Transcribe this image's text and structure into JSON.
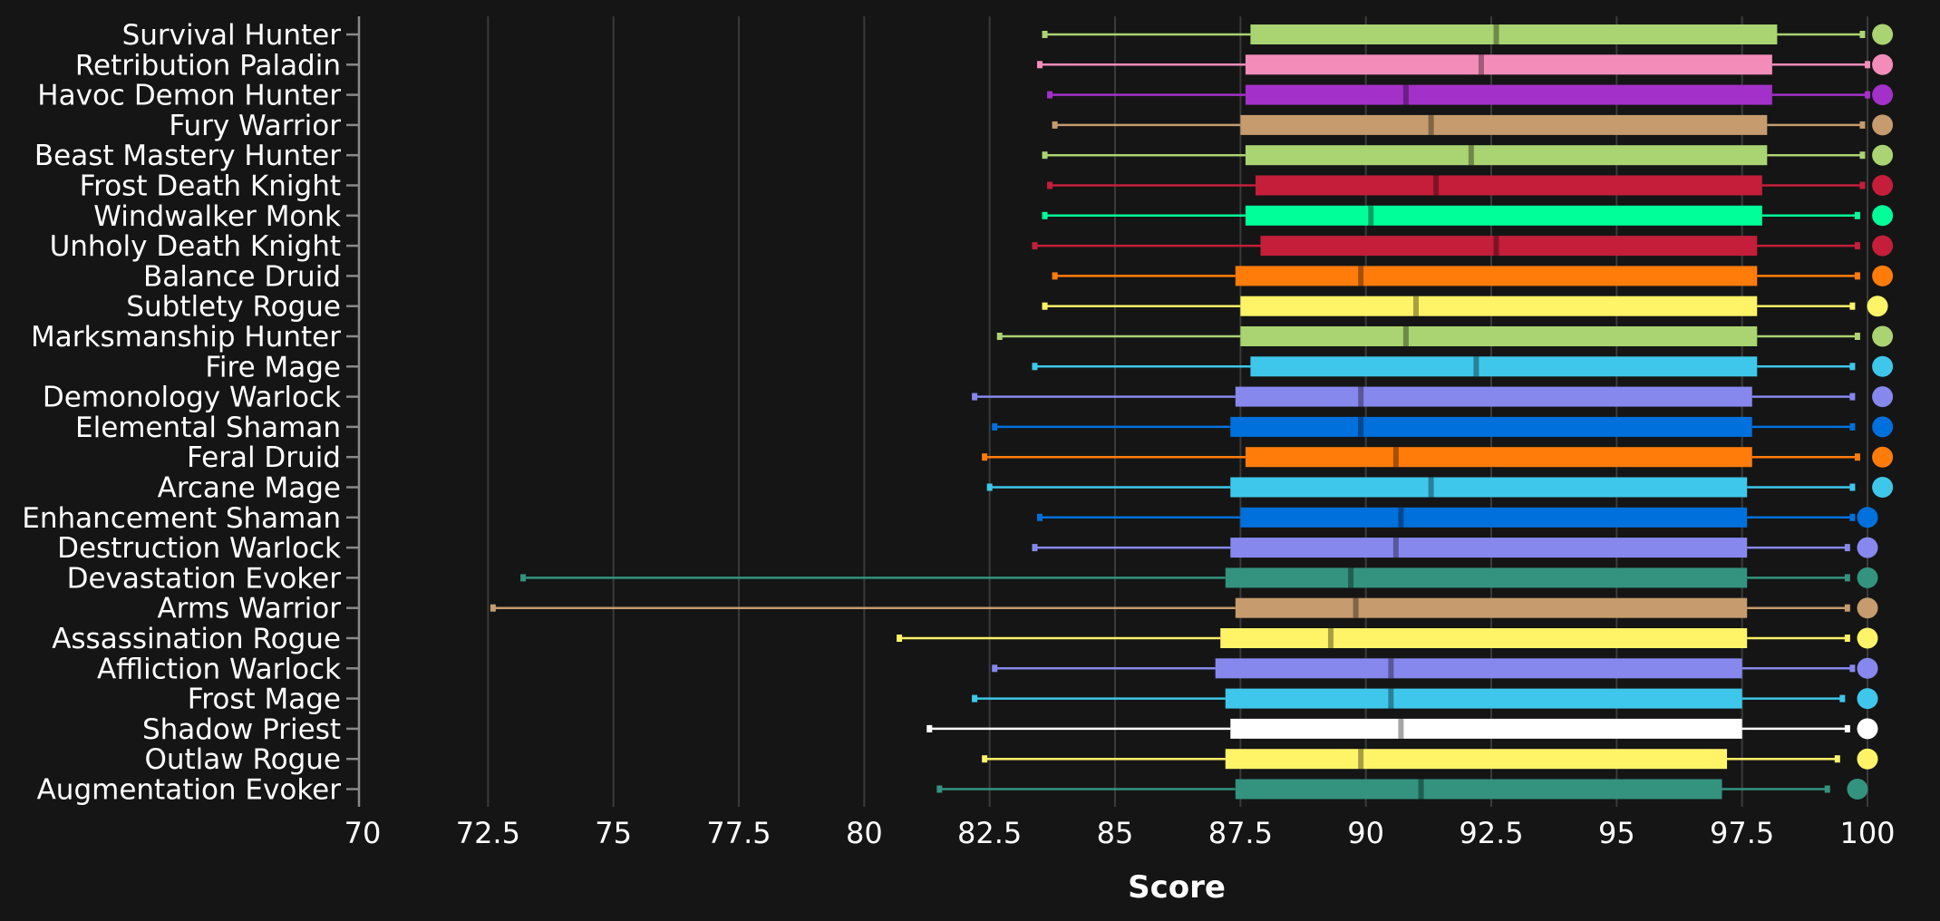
{
  "chart_data": {
    "type": "box",
    "title": "",
    "xlabel": "Score",
    "ylabel": "",
    "xlim": [
      70,
      100
    ],
    "ticks": [
      "70",
      "72.5",
      "75",
      "77.5",
      "80",
      "82.5",
      "85",
      "87.5",
      "90",
      "92.5",
      "95",
      "97.5",
      "100"
    ],
    "tick_values": [
      70,
      72.5,
      75,
      77.5,
      80,
      82.5,
      85,
      87.5,
      90,
      92.5,
      95,
      97.5,
      100
    ],
    "grid": "vertical",
    "series": [
      {
        "name": "Survival Hunter",
        "color": "#aad372",
        "min": 83.6,
        "q1": 87.7,
        "median": 92.6,
        "q3": 98.2,
        "max": 99.9,
        "point": 100.3
      },
      {
        "name": "Retribution Paladin",
        "color": "#f48cba",
        "min": 83.5,
        "q1": 87.6,
        "median": 92.3,
        "q3": 98.1,
        "max": 100.0,
        "point": 100.3
      },
      {
        "name": "Havoc Demon Hunter",
        "color": "#a330c9",
        "min": 83.7,
        "q1": 87.6,
        "median": 90.8,
        "q3": 98.1,
        "max": 100.0,
        "point": 100.3
      },
      {
        "name": "Fury Warrior",
        "color": "#c69b6d",
        "min": 83.8,
        "q1": 87.5,
        "median": 91.3,
        "q3": 98.0,
        "max": 99.9,
        "point": 100.3
      },
      {
        "name": "Beast Mastery Hunter",
        "color": "#aad372",
        "min": 83.6,
        "q1": 87.6,
        "median": 92.1,
        "q3": 98.0,
        "max": 99.9,
        "point": 100.3
      },
      {
        "name": "Frost Death Knight",
        "color": "#c41e3a",
        "min": 83.7,
        "q1": 87.8,
        "median": 91.4,
        "q3": 97.9,
        "max": 99.9,
        "point": 100.3
      },
      {
        "name": "Windwalker Monk",
        "color": "#00ff98",
        "min": 83.6,
        "q1": 87.6,
        "median": 90.1,
        "q3": 97.9,
        "max": 99.8,
        "point": 100.3
      },
      {
        "name": "Unholy Death Knight",
        "color": "#c41e3a",
        "min": 83.4,
        "q1": 87.9,
        "median": 92.6,
        "q3": 97.8,
        "max": 99.8,
        "point": 100.3
      },
      {
        "name": "Balance Druid",
        "color": "#ff7c0a",
        "min": 83.8,
        "q1": 87.4,
        "median": 89.9,
        "q3": 97.8,
        "max": 99.8,
        "point": 100.3
      },
      {
        "name": "Subtlety Rogue",
        "color": "#fff468",
        "min": 83.6,
        "q1": 87.5,
        "median": 91.0,
        "q3": 97.8,
        "max": 99.7,
        "point": 100.2
      },
      {
        "name": "Marksmanship Hunter",
        "color": "#aad372",
        "min": 82.7,
        "q1": 87.5,
        "median": 90.8,
        "q3": 97.8,
        "max": 99.8,
        "point": 100.3
      },
      {
        "name": "Fire Mage",
        "color": "#3fc7eb",
        "min": 83.4,
        "q1": 87.7,
        "median": 92.2,
        "q3": 97.8,
        "max": 99.7,
        "point": 100.3
      },
      {
        "name": "Demonology Warlock",
        "color": "#8788ee",
        "min": 82.2,
        "q1": 87.4,
        "median": 89.9,
        "q3": 97.7,
        "max": 99.7,
        "point": 100.3
      },
      {
        "name": "Elemental Shaman",
        "color": "#0070dd",
        "min": 82.6,
        "q1": 87.3,
        "median": 89.9,
        "q3": 97.7,
        "max": 99.7,
        "point": 100.3
      },
      {
        "name": "Feral Druid",
        "color": "#ff7c0a",
        "min": 82.4,
        "q1": 87.6,
        "median": 90.6,
        "q3": 97.7,
        "max": 99.8,
        "point": 100.3
      },
      {
        "name": "Arcane Mage",
        "color": "#3fc7eb",
        "min": 82.5,
        "q1": 87.3,
        "median": 91.3,
        "q3": 97.6,
        "max": 99.7,
        "point": 100.3
      },
      {
        "name": "Enhancement Shaman",
        "color": "#0070dd",
        "min": 83.5,
        "q1": 87.5,
        "median": 90.7,
        "q3": 97.6,
        "max": 99.7,
        "point": 100.0
      },
      {
        "name": "Destruction Warlock",
        "color": "#8788ee",
        "min": 83.4,
        "q1": 87.3,
        "median": 90.6,
        "q3": 97.6,
        "max": 99.6,
        "point": 100.0
      },
      {
        "name": "Devastation Evoker",
        "color": "#33937f",
        "min": 73.2,
        "q1": 87.2,
        "median": 89.7,
        "q3": 97.6,
        "max": 99.6,
        "point": 100.0
      },
      {
        "name": "Arms Warrior",
        "color": "#c69b6d",
        "min": 72.6,
        "q1": 87.4,
        "median": 89.8,
        "q3": 97.6,
        "max": 99.6,
        "point": 100.0
      },
      {
        "name": "Assassination Rogue",
        "color": "#fff468",
        "min": 80.7,
        "q1": 87.1,
        "median": 89.3,
        "q3": 97.6,
        "max": 99.6,
        "point": 100.0
      },
      {
        "name": "Affliction Warlock",
        "color": "#8788ee",
        "min": 82.6,
        "q1": 87.0,
        "median": 90.5,
        "q3": 97.5,
        "max": 99.7,
        "point": 100.0
      },
      {
        "name": "Frost Mage",
        "color": "#3fc7eb",
        "min": 82.2,
        "q1": 87.2,
        "median": 90.5,
        "q3": 97.5,
        "max": 99.5,
        "point": 100.0
      },
      {
        "name": "Shadow Priest",
        "color": "#ffffff",
        "min": 81.3,
        "q1": 87.3,
        "median": 90.7,
        "q3": 97.5,
        "max": 99.6,
        "point": 100.0
      },
      {
        "name": "Outlaw Rogue",
        "color": "#fff468",
        "min": 82.4,
        "q1": 87.2,
        "median": 89.9,
        "q3": 97.2,
        "max": 99.4,
        "point": 100.0
      },
      {
        "name": "Augmentation Evoker",
        "color": "#33937f",
        "min": 81.5,
        "q1": 87.4,
        "median": 91.1,
        "q3": 97.1,
        "max": 99.2,
        "point": 99.8
      }
    ]
  }
}
